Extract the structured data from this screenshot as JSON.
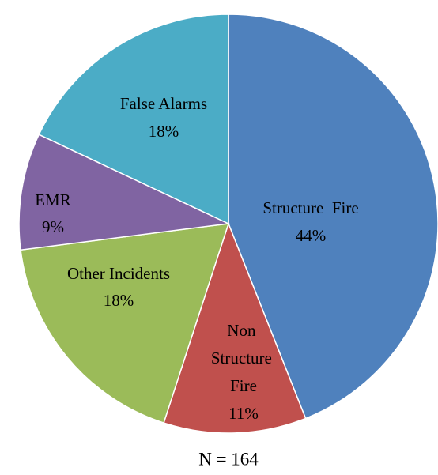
{
  "chart_data": {
    "type": "pie",
    "categories": [
      "Structure  Fire",
      "Non Structure Fire",
      "Other Incidents",
      "EMR",
      "False Alarms"
    ],
    "values": [
      44,
      11,
      18,
      9,
      18
    ],
    "value_labels": [
      "44%",
      "11%",
      "18%",
      "9%",
      "18%"
    ],
    "colors": [
      "#4f81bd",
      "#c0504d",
      "#9bbb59",
      "#8064a2",
      "#4bacc6"
    ],
    "xlabel": "N = 164"
  }
}
